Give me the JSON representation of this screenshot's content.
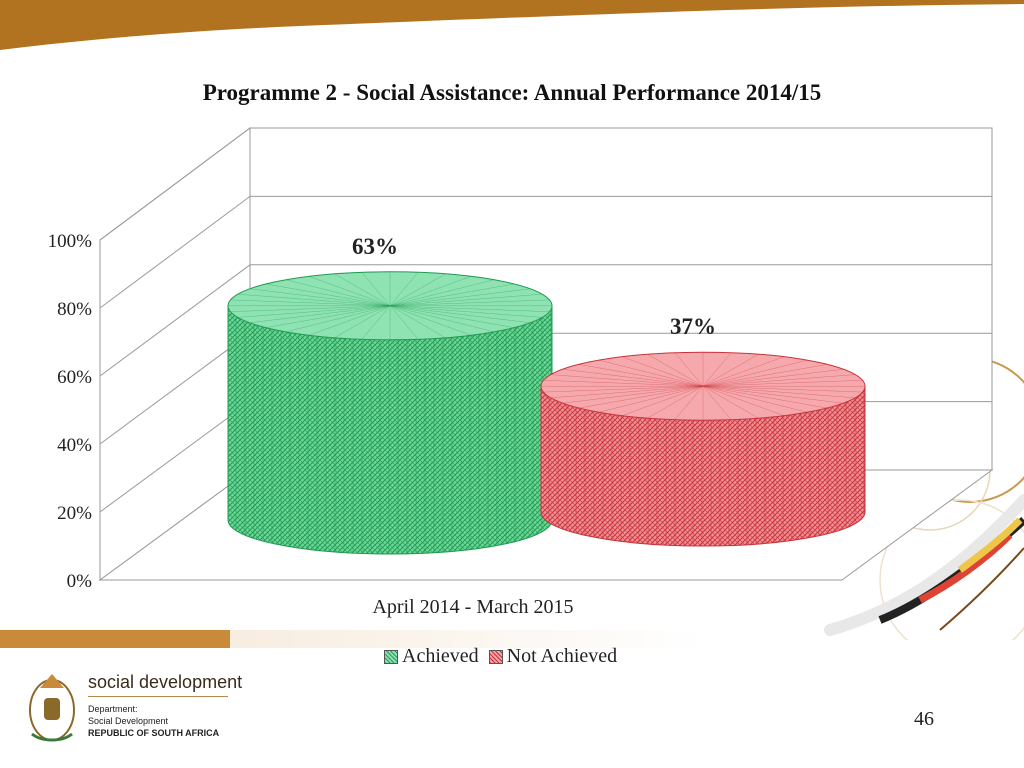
{
  "slide": {
    "page_number": "46"
  },
  "branding": {
    "name": "social development",
    "line1": "Department:",
    "line2": "Social Development",
    "line3": "REPUBLIC OF SOUTH AFRICA"
  },
  "colors": {
    "band": "#b27320",
    "achieved": "#3cb46e",
    "not_achieved": "#d94a52"
  },
  "chart_data": {
    "type": "bar",
    "title": "Programme 2 -  Social Assistance: Annual Performance 2014/15",
    "categories": [
      "April 2014 - March 2015"
    ],
    "series": [
      {
        "name": "Achieved",
        "values": [
          0.63
        ],
        "label": "63%"
      },
      {
        "name": "Not Achieved",
        "values": [
          0.37
        ],
        "label": "37%"
      }
    ],
    "y_ticks": [
      "0%",
      "20%",
      "40%",
      "60%",
      "80%",
      "100%"
    ],
    "ylim": [
      0,
      1
    ],
    "grid": true,
    "legend_position": "bottom"
  }
}
